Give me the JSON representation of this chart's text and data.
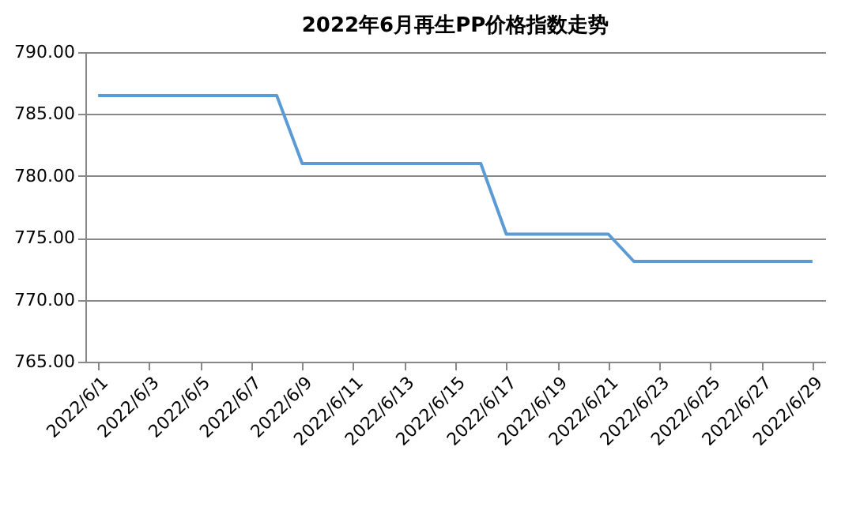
{
  "chart_data": {
    "type": "line",
    "title": "2022年6月再生PP价格指数走势",
    "categories": [
      "2022/6/1",
      null,
      "2022/6/3",
      null,
      "2022/6/5",
      null,
      "2022/6/7",
      null,
      "2022/6/9",
      null,
      "2022/6/11",
      null,
      "2022/6/13",
      null,
      "2022/6/15",
      null,
      "2022/6/17",
      null,
      "2022/6/19",
      null,
      "2022/6/21",
      null,
      "2022/6/23",
      null,
      "2022/6/25",
      null,
      "2022/6/27",
      null,
      "2022/6/29"
    ],
    "series": [
      {
        "color": "#5b9bd5",
        "values": [
          786.5,
          786.5,
          786.5,
          786.5,
          786.5,
          786.5,
          786.5,
          786.5,
          781.0,
          781.0,
          781.0,
          781.0,
          781.0,
          781.0,
          781.0,
          781.0,
          775.3,
          775.3,
          775.3,
          775.3,
          775.3,
          773.1,
          773.1,
          773.1,
          773.1,
          773.1,
          773.1,
          773.1,
          773.1
        ]
      }
    ],
    "ylim": [
      765,
      790
    ],
    "yticks": [
      {
        "value": 765,
        "label": "765.00"
      },
      {
        "value": 770,
        "label": "770.00"
      },
      {
        "value": 775,
        "label": "775.00"
      },
      {
        "value": 780,
        "label": "780.00"
      },
      {
        "value": 785,
        "label": "785.00"
      },
      {
        "value": 790,
        "label": "790.00"
      }
    ],
    "grid": "y",
    "legend": false,
    "marker": "none"
  }
}
